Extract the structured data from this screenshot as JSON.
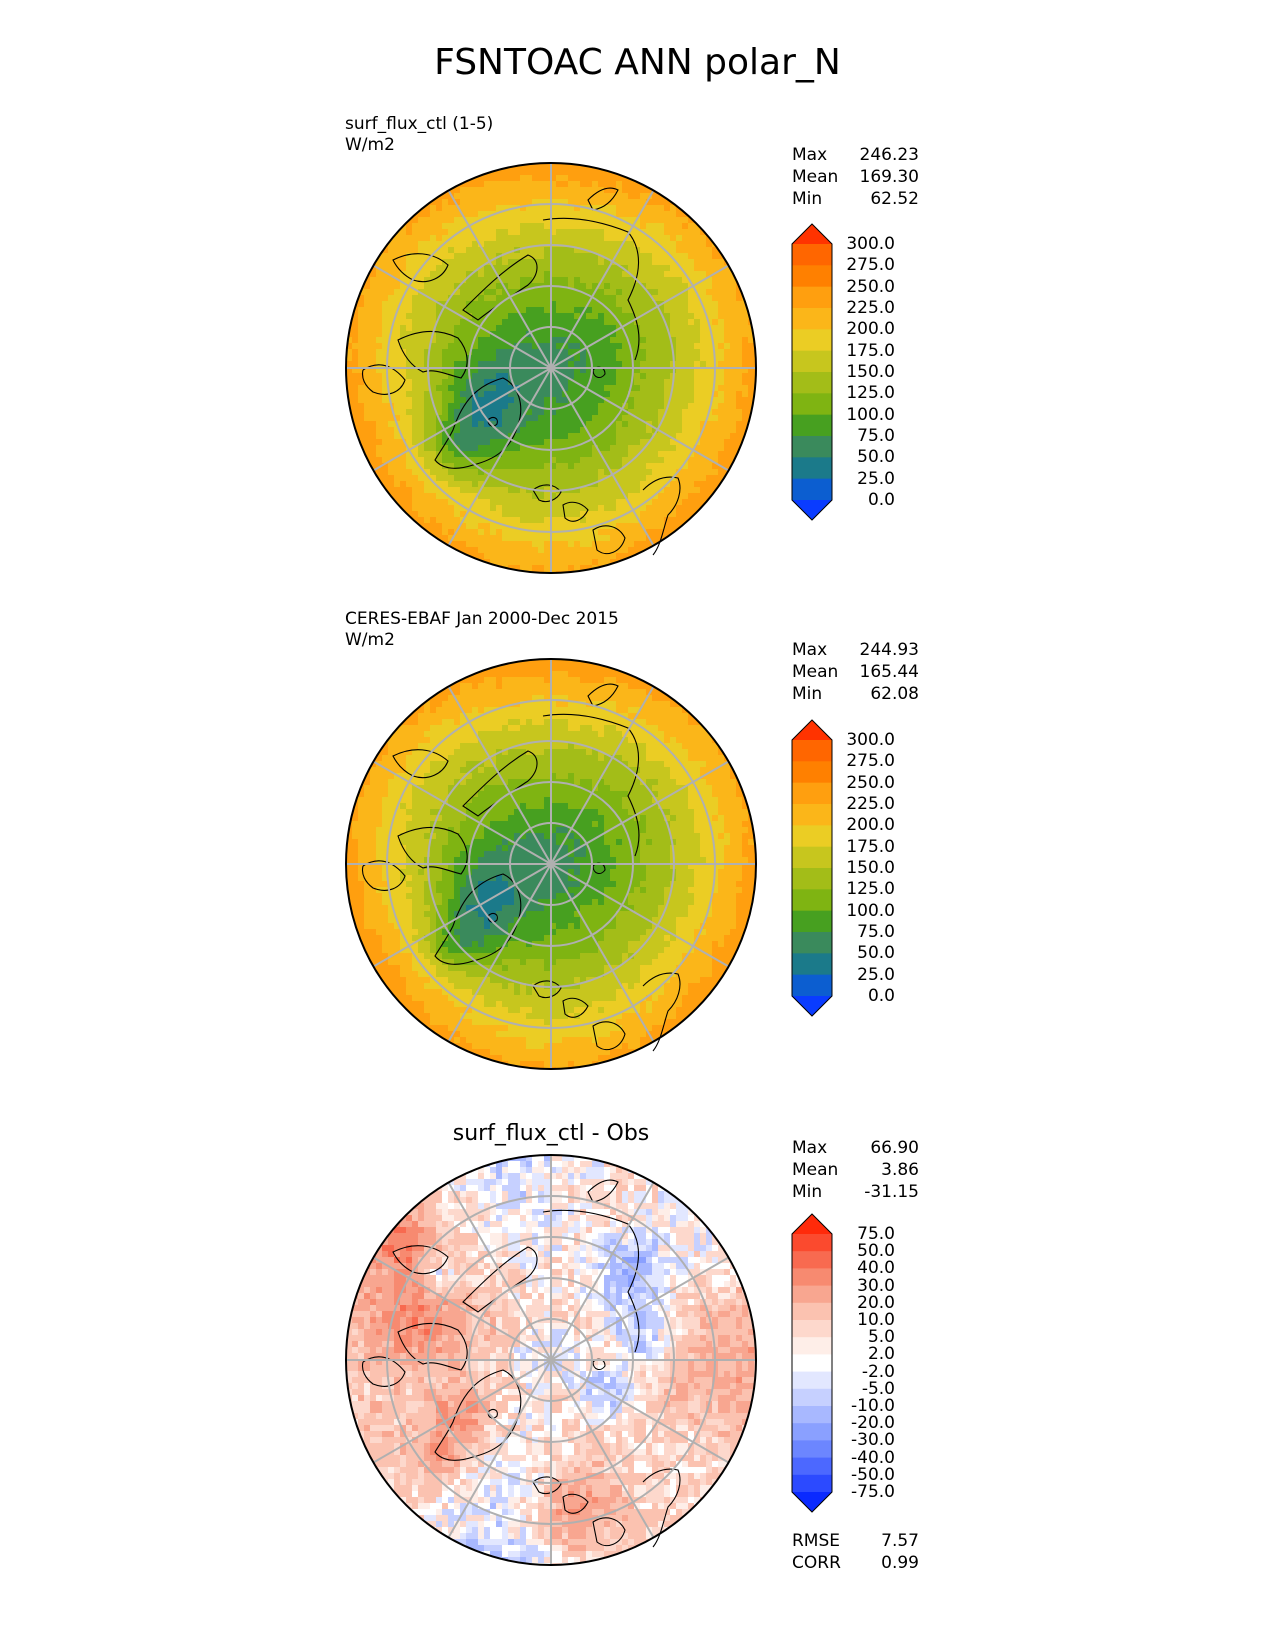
{
  "title": "FSNTOAC ANN polar_N",
  "panels": [
    {
      "id": "test",
      "subtitle_line1": "surf_flux_ctl (1-5)",
      "subtitle_line2": "W/m2",
      "stats": [
        {
          "label": "Max",
          "value": "246.23"
        },
        {
          "label": "Mean",
          "value": "169.30"
        },
        {
          "label": "Min",
          "value": "62.52"
        }
      ],
      "colorbar": {
        "labels": [
          "300.0",
          "275.0",
          "250.0",
          "225.0",
          "200.0",
          "175.0",
          "150.0",
          "125.0",
          "100.0",
          "75.0",
          "50.0",
          "25.0",
          "0.0"
        ],
        "colors": [
          "#ff3300",
          "#ff6600",
          "#ff8000",
          "#ff9f0f",
          "#fbb619",
          "#ebcd24",
          "#c7c61e",
          "#a3bd18",
          "#7fb412",
          "#47a020",
          "#3a8a5c",
          "#1b7a8a",
          "#0c5ed0",
          "#0a3cff"
        ]
      }
    },
    {
      "id": "ref",
      "subtitle_line1": "CERES-EBAF Jan 2000-Dec 2015",
      "subtitle_line2": "W/m2",
      "stats": [
        {
          "label": "Max",
          "value": "244.93"
        },
        {
          "label": "Mean",
          "value": "165.44"
        },
        {
          "label": "Min",
          "value": "62.08"
        }
      ],
      "colorbar": {
        "labels": [
          "300.0",
          "275.0",
          "250.0",
          "225.0",
          "200.0",
          "175.0",
          "150.0",
          "125.0",
          "100.0",
          "75.0",
          "50.0",
          "25.0",
          "0.0"
        ],
        "colors": [
          "#ff3300",
          "#ff6600",
          "#ff8000",
          "#ff9f0f",
          "#fbb619",
          "#ebcd24",
          "#c7c61e",
          "#a3bd18",
          "#7fb412",
          "#47a020",
          "#3a8a5c",
          "#1b7a8a",
          "#0c5ed0",
          "#0a3cff"
        ]
      }
    },
    {
      "id": "diff",
      "title": "surf_flux_ctl - Obs",
      "stats": [
        {
          "label": "Max",
          "value": "66.90"
        },
        {
          "label": "Mean",
          "value": "3.86"
        },
        {
          "label": "Min",
          "value": "-31.15"
        }
      ],
      "colorbar": {
        "labels": [
          "75.0",
          "50.0",
          "40.0",
          "30.0",
          "20.0",
          "10.0",
          "5.0",
          "2.0",
          "-2.0",
          "-5.0",
          "-10.0",
          "-20.0",
          "-30.0",
          "-40.0",
          "-50.0",
          "-75.0"
        ],
        "colors": [
          "#ff2a0a",
          "#fb4a2e",
          "#f86a50",
          "#f78a70",
          "#f8a690",
          "#fbc2b0",
          "#fdd8cc",
          "#feeee8",
          "#ffffff",
          "#e2e7ff",
          "#c6d0ff",
          "#a8b8ff",
          "#8aa0ff",
          "#6c86ff",
          "#4c68ff",
          "#2c4aff",
          "#0a2aff"
        ]
      },
      "bottom_stats": [
        {
          "label": "RMSE",
          "value": "7.57"
        },
        {
          "label": "CORR",
          "value": "0.99"
        }
      ]
    }
  ]
}
